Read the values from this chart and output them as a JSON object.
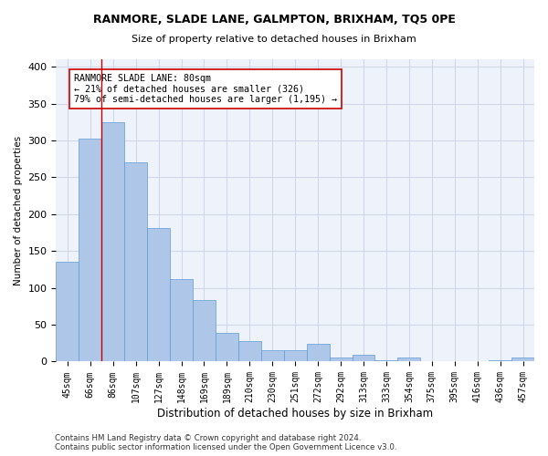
{
  "title1": "RANMORE, SLADE LANE, GALMPTON, BRIXHAM, TQ5 0PE",
  "title2": "Size of property relative to detached houses in Brixham",
  "xlabel": "Distribution of detached houses by size in Brixham",
  "ylabel": "Number of detached properties",
  "footnote1": "Contains HM Land Registry data © Crown copyright and database right 2024.",
  "footnote2": "Contains public sector information licensed under the Open Government Licence v3.0.",
  "categories": [
    "45sqm",
    "66sqm",
    "86sqm",
    "107sqm",
    "127sqm",
    "148sqm",
    "169sqm",
    "189sqm",
    "210sqm",
    "230sqm",
    "251sqm",
    "272sqm",
    "292sqm",
    "313sqm",
    "333sqm",
    "354sqm",
    "375sqm",
    "395sqm",
    "416sqm",
    "436sqm",
    "457sqm"
  ],
  "values": [
    135,
    302,
    325,
    270,
    181,
    112,
    84,
    39,
    28,
    15,
    15,
    24,
    5,
    9,
    2,
    5,
    0,
    1,
    0,
    2,
    5
  ],
  "bar_color": "#aec6e8",
  "bar_edge_color": "#5b9bd5",
  "grid_color": "#d0d8e8",
  "annotation_text": "RANMORE SLADE LANE: 80sqm\n← 21% of detached houses are smaller (326)\n79% of semi-detached houses are larger (1,195) →",
  "annotation_box_color": "#ffffff",
  "annotation_box_edge_color": "#cc0000",
  "vline_color": "#cc0000",
  "background_color": "#ffffff",
  "plot_background": "#eef2fa"
}
